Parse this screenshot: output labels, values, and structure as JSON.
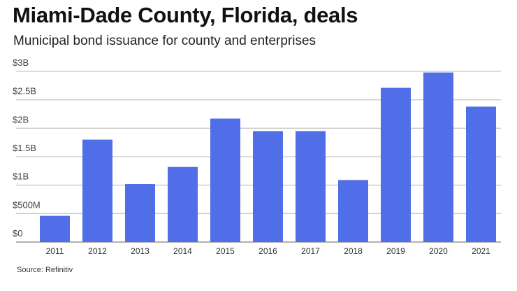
{
  "chart_data": {
    "type": "bar",
    "title": "Miami-Dade County, Florida, deals",
    "subtitle": "Municipal bond issuance for county and enterprises",
    "source": "Source: Refinitiv",
    "xlabel": "",
    "ylabel": "",
    "categories": [
      "2011",
      "2012",
      "2013",
      "2014",
      "2015",
      "2016",
      "2017",
      "2018",
      "2019",
      "2020",
      "2021"
    ],
    "values": [
      0.46,
      1.8,
      1.02,
      1.32,
      2.17,
      1.95,
      1.95,
      1.09,
      2.71,
      2.98,
      2.38
    ],
    "unit": "billions USD",
    "ylim": [
      0,
      3
    ],
    "yticks": [
      0,
      0.5,
      1,
      1.5,
      2,
      2.5,
      3
    ],
    "ytick_labels": [
      "$0",
      "$500M",
      "$1B",
      "$1.5B",
      "$2B",
      "$2.5B",
      "$3B"
    ],
    "grid": true,
    "bar_color": "#4f6ee8",
    "grid_color": "#c8c8c8"
  }
}
